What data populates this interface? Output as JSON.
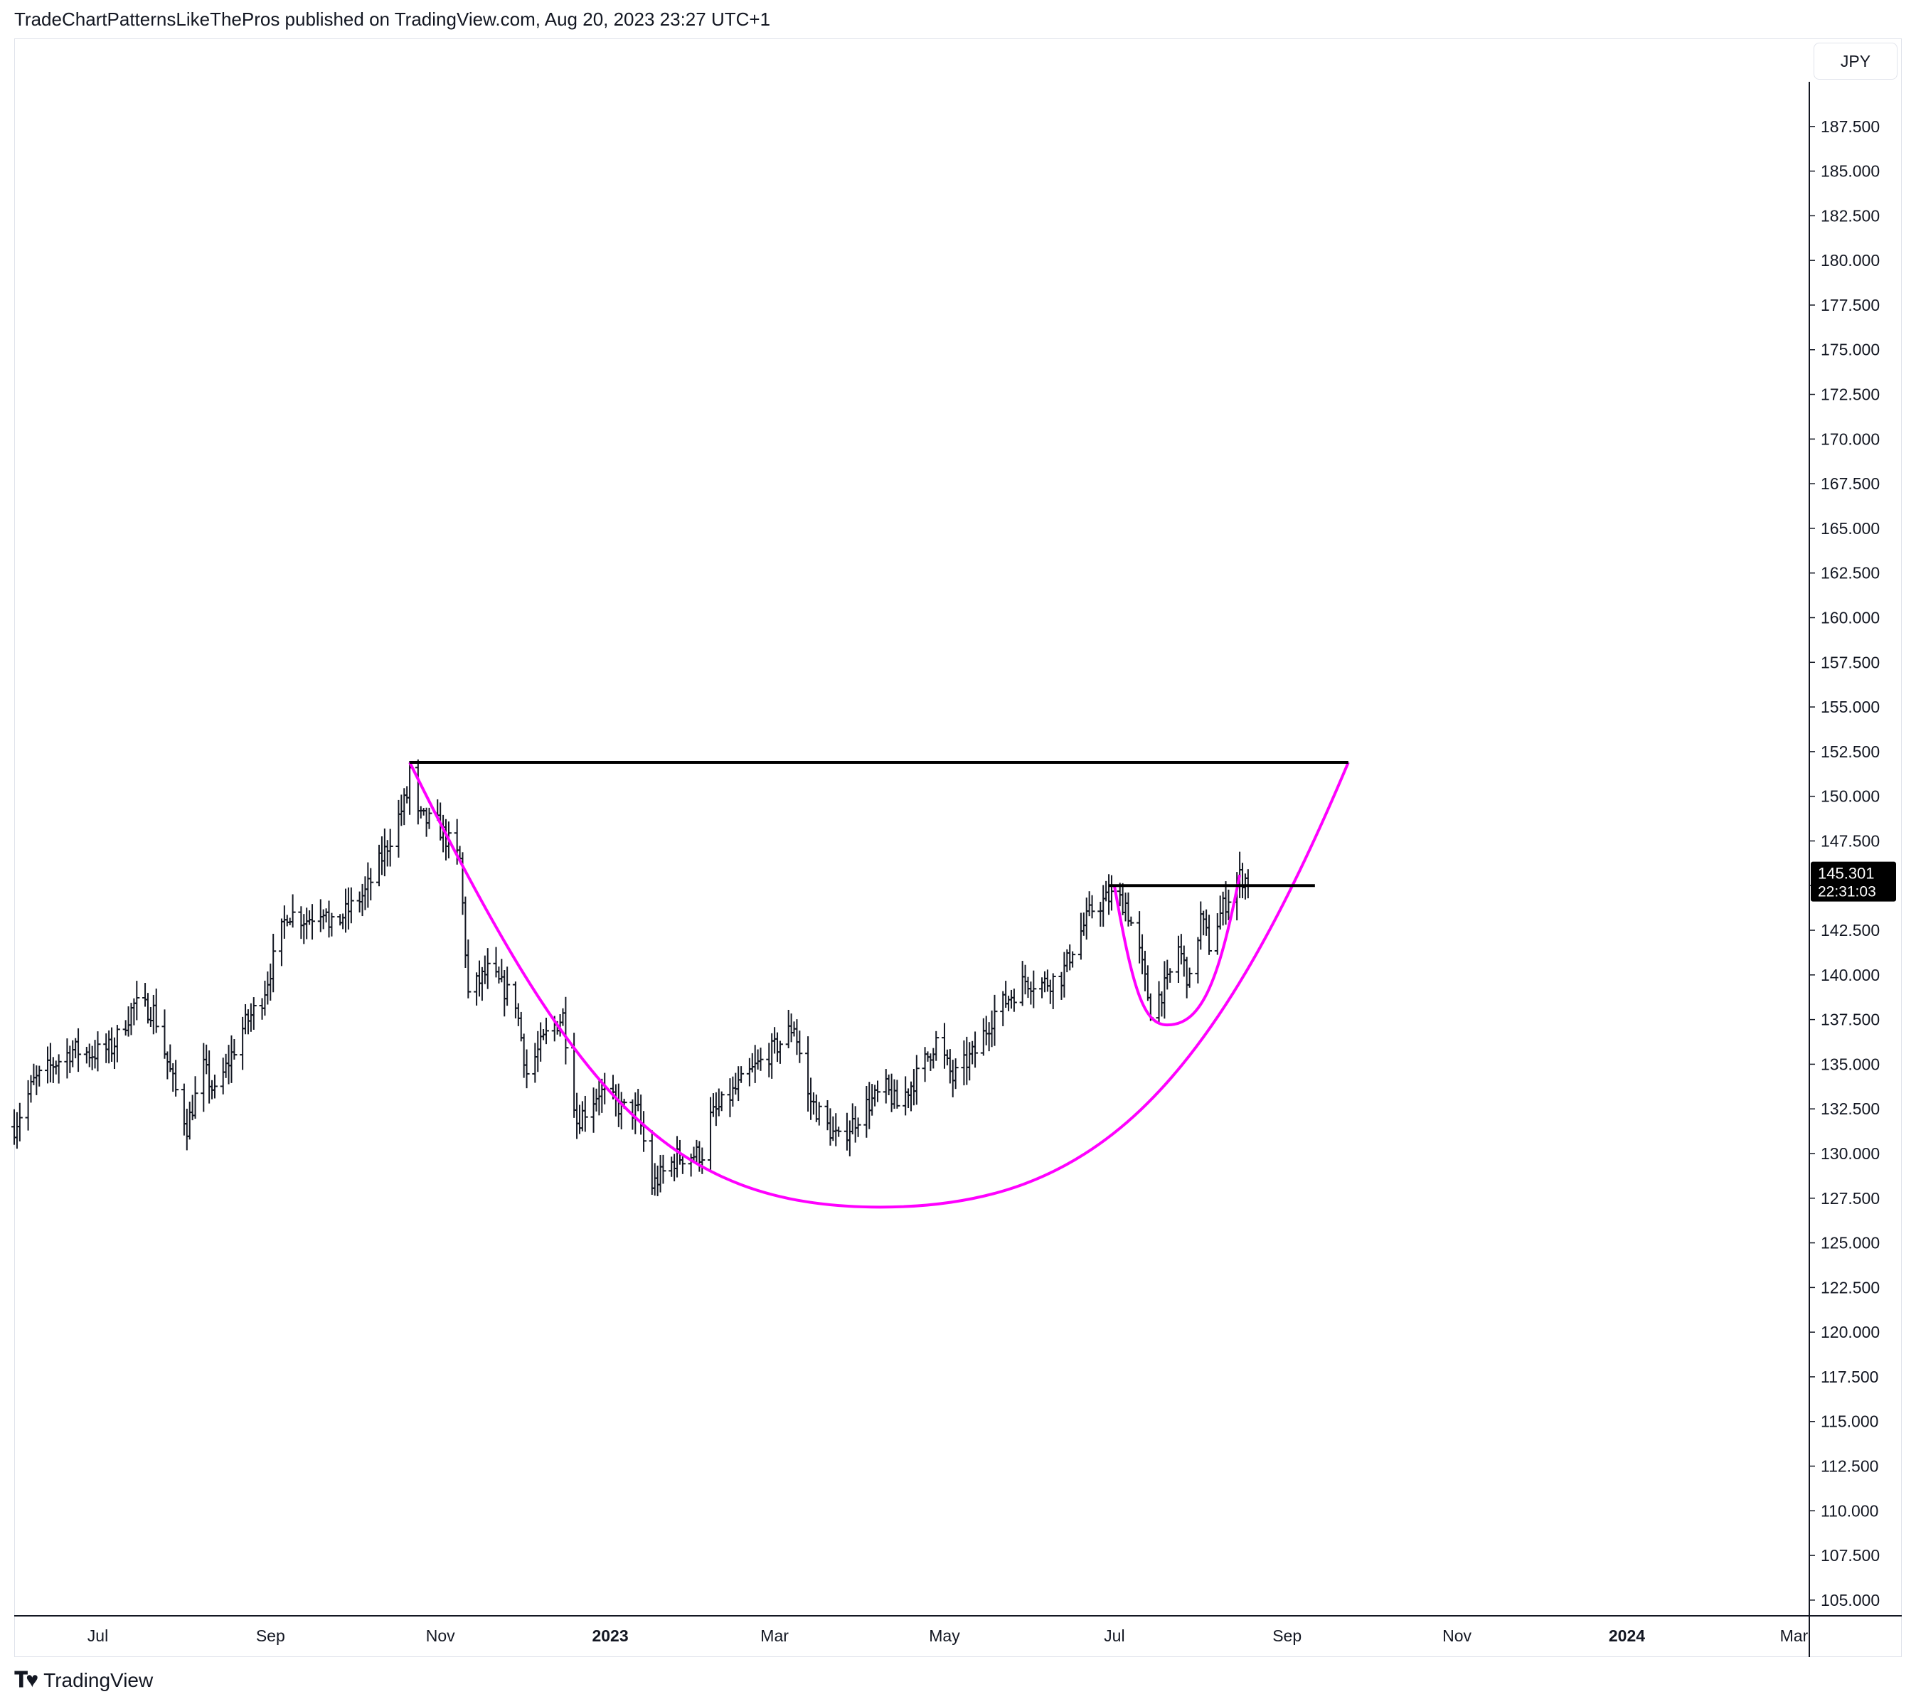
{
  "header": {
    "attribution": "TradeChartPatternsLikeThePros published on TradingView.com, Aug 20, 2023 23:27 UTC+1"
  },
  "price_scale": {
    "currency": "JPY"
  },
  "last_price": {
    "value": "145.301",
    "countdown": "22:31:03"
  },
  "footer": {
    "brand": "TradingView",
    "logo_icon": "tradingview-logo-icon"
  },
  "colors": {
    "bars": "#131722",
    "cup": "#ff00ff",
    "resistance": "#000000",
    "price_label": "#000000"
  },
  "chart_data": {
    "type": "ohlc",
    "y_tick_labels": [
      "105.000",
      "107.500",
      "110.000",
      "112.500",
      "115.000",
      "117.500",
      "120.000",
      "122.500",
      "125.000",
      "127.500",
      "130.000",
      "132.500",
      "135.000",
      "137.500",
      "140.000",
      "142.500",
      "145.000",
      "147.500",
      "150.000",
      "152.500",
      "155.000",
      "157.500",
      "160.000",
      "162.500",
      "165.000",
      "167.500",
      "170.000",
      "172.500",
      "175.000",
      "177.500",
      "180.000",
      "182.500",
      "185.000",
      "187.500"
    ],
    "ylim": [
      104.2,
      190.0
    ],
    "x_ticks": [
      {
        "label": "Jul",
        "date": "2022-07-01",
        "bold": false
      },
      {
        "label": "Sep",
        "date": "2022-09-01",
        "bold": false
      },
      {
        "label": "Nov",
        "date": "2022-11-01",
        "bold": false
      },
      {
        "label": "2023",
        "date": "2023-01-01",
        "bold": true
      },
      {
        "label": "Mar",
        "date": "2023-03-01",
        "bold": false
      },
      {
        "label": "May",
        "date": "2023-05-01",
        "bold": false
      },
      {
        "label": "Jul",
        "date": "2023-07-01",
        "bold": false
      },
      {
        "label": "Sep",
        "date": "2023-09-01",
        "bold": false
      },
      {
        "label": "Nov",
        "date": "2023-11-01",
        "bold": false
      },
      {
        "label": "2024",
        "date": "2024-01-01",
        "bold": true
      },
      {
        "label": "Mar",
        "date": "2024-03-01",
        "bold": false
      }
    ],
    "xlim": [
      "2022-06-01",
      "2024-03-06"
    ],
    "price_anchors": [
      {
        "date": "2022-06-01",
        "price": 131.5
      },
      {
        "date": "2022-06-08",
        "price": 134.0
      },
      {
        "date": "2022-06-15",
        "price": 135.0
      },
      {
        "date": "2022-06-22",
        "price": 135.8
      },
      {
        "date": "2022-06-29",
        "price": 135.6
      },
      {
        "date": "2022-07-06",
        "price": 135.9
      },
      {
        "date": "2022-07-14",
        "price": 138.3
      },
      {
        "date": "2022-07-21",
        "price": 138.0
      },
      {
        "date": "2022-07-28",
        "price": 134.0
      },
      {
        "date": "2022-08-02",
        "price": 131.5
      },
      {
        "date": "2022-08-08",
        "price": 134.8
      },
      {
        "date": "2022-08-12",
        "price": 133.3
      },
      {
        "date": "2022-08-22",
        "price": 137.0
      },
      {
        "date": "2022-08-29",
        "price": 138.7
      },
      {
        "date": "2022-09-07",
        "price": 143.5
      },
      {
        "date": "2022-09-14",
        "price": 143.1
      },
      {
        "date": "2022-09-21",
        "price": 143.9
      },
      {
        "date": "2022-09-22",
        "price": 142.5
      },
      {
        "date": "2022-10-05",
        "price": 144.6
      },
      {
        "date": "2022-10-12",
        "price": 146.9
      },
      {
        "date": "2022-10-20",
        "price": 150.0
      },
      {
        "date": "2022-10-21",
        "price": 151.5
      },
      {
        "date": "2022-10-24",
        "price": 148.8
      },
      {
        "date": "2022-10-31",
        "price": 148.4
      },
      {
        "date": "2022-11-08",
        "price": 146.4
      },
      {
        "date": "2022-11-11",
        "price": 138.9
      },
      {
        "date": "2022-11-18",
        "price": 140.2
      },
      {
        "date": "2022-11-28",
        "price": 138.5
      },
      {
        "date": "2022-12-02",
        "price": 134.5
      },
      {
        "date": "2022-12-09",
        "price": 136.6
      },
      {
        "date": "2022-12-15",
        "price": 137.7
      },
      {
        "date": "2022-12-20",
        "price": 131.8
      },
      {
        "date": "2022-12-28",
        "price": 133.5
      },
      {
        "date": "2023-01-05",
        "price": 132.5
      },
      {
        "date": "2023-01-11",
        "price": 132.3
      },
      {
        "date": "2023-01-16",
        "price": 128.2
      },
      {
        "date": "2023-01-25",
        "price": 129.8
      },
      {
        "date": "2023-02-03",
        "price": 130.0
      },
      {
        "date": "2023-02-06",
        "price": 132.0
      },
      {
        "date": "2023-02-14",
        "price": 133.4
      },
      {
        "date": "2023-02-22",
        "price": 134.8
      },
      {
        "date": "2023-03-03",
        "price": 136.2
      },
      {
        "date": "2023-03-08",
        "price": 137.2
      },
      {
        "date": "2023-03-13",
        "price": 133.2
      },
      {
        "date": "2023-03-20",
        "price": 131.5
      },
      {
        "date": "2023-03-24",
        "price": 130.7
      },
      {
        "date": "2023-04-03",
        "price": 132.7
      },
      {
        "date": "2023-04-10",
        "price": 133.6
      },
      {
        "date": "2023-04-14",
        "price": 132.7
      },
      {
        "date": "2023-04-21",
        "price": 134.3
      },
      {
        "date": "2023-04-28",
        "price": 136.3
      },
      {
        "date": "2023-05-04",
        "price": 134.2
      },
      {
        "date": "2023-05-12",
        "price": 135.7
      },
      {
        "date": "2023-05-19",
        "price": 137.9
      },
      {
        "date": "2023-05-30",
        "price": 139.7
      },
      {
        "date": "2023-06-05",
        "price": 139.5
      },
      {
        "date": "2023-06-12",
        "price": 139.9
      },
      {
        "date": "2023-06-16",
        "price": 141.5
      },
      {
        "date": "2023-06-23",
        "price": 143.7
      },
      {
        "date": "2023-06-30",
        "price": 144.4
      },
      {
        "date": "2023-07-05",
        "price": 144.0
      },
      {
        "date": "2023-07-10",
        "price": 141.2
      },
      {
        "date": "2023-07-14",
        "price": 138.1
      },
      {
        "date": "2023-07-20",
        "price": 139.5
      },
      {
        "date": "2023-07-24",
        "price": 141.6
      },
      {
        "date": "2023-07-28",
        "price": 139.5
      },
      {
        "date": "2023-08-01",
        "price": 143.2
      },
      {
        "date": "2023-08-04",
        "price": 141.7
      },
      {
        "date": "2023-08-09",
        "price": 143.8
      },
      {
        "date": "2023-08-15",
        "price": 145.5
      },
      {
        "date": "2023-08-18",
        "price": 145.3
      }
    ],
    "drawings": {
      "rim_line": {
        "from": {
          "date": "2022-10-21",
          "price": 151.9
        },
        "to": {
          "date": "2023-09-23",
          "price": 151.9
        },
        "color": "#000000"
      },
      "handle_line": {
        "from": {
          "date": "2023-06-29",
          "price": 145.0
        },
        "to": {
          "date": "2023-09-11",
          "price": 145.0
        },
        "color": "#000000"
      },
      "cup_curve": {
        "start": {
          "date": "2022-10-21",
          "price": 151.9
        },
        "bottom": {
          "date": "2023-04-08",
          "price": 127.0
        },
        "end": {
          "date": "2023-09-23",
          "price": 151.9
        },
        "color": "#ff00ff"
      },
      "handle_curve": {
        "start": {
          "date": "2023-07-01",
          "price": 145.0
        },
        "bottom": {
          "date": "2023-07-20",
          "price": 137.2
        },
        "end": {
          "date": "2023-08-15",
          "price": 145.6
        },
        "color": "#ff00ff"
      }
    }
  }
}
